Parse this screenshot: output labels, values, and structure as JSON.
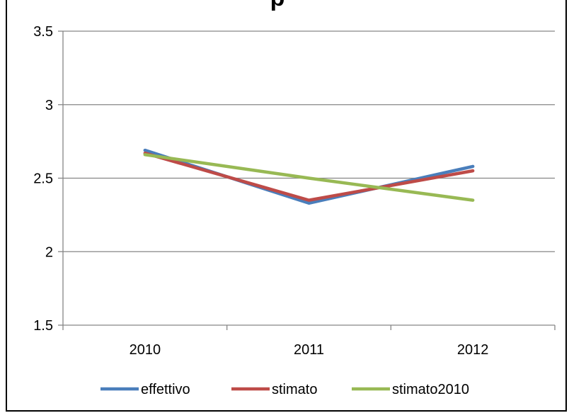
{
  "chart_data": {
    "type": "line",
    "title": "p",
    "categories": [
      "2010",
      "2011",
      "2012"
    ],
    "series": [
      {
        "name": "effettivo",
        "values": [
          2.69,
          2.33,
          2.58
        ],
        "color": "#4a7ebb"
      },
      {
        "name": "stimato",
        "values": [
          2.67,
          2.35,
          2.55
        ],
        "color": "#be4b48"
      },
      {
        "name": "stimato2010",
        "values": [
          2.66,
          2.5,
          2.35
        ],
        "color": "#98b954"
      }
    ],
    "ylim": [
      1.5,
      3.5
    ],
    "yticks": [
      "1.5",
      "2",
      "2.5",
      "3",
      "3.5"
    ],
    "xlabel": "",
    "ylabel": "",
    "grid": true,
    "legend": "bottom"
  }
}
